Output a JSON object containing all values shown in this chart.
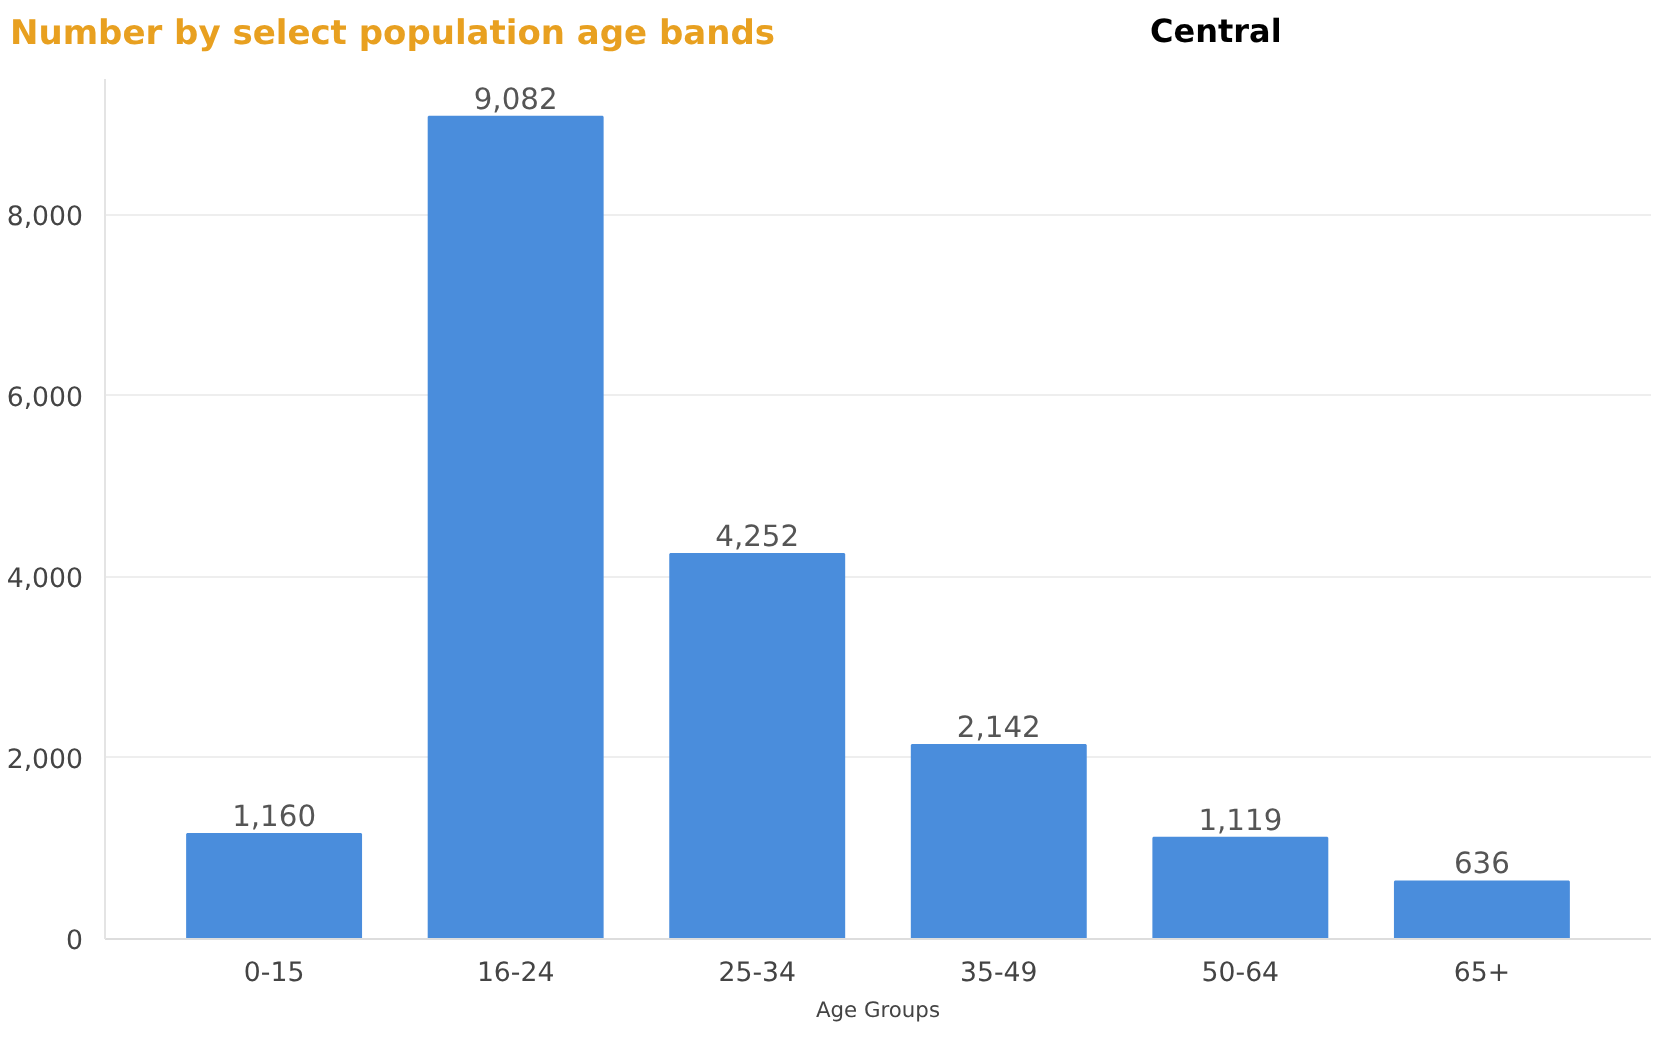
{
  "chart_data": {
    "type": "bar",
    "title": "Number by select population age bands",
    "subtitle": "Central",
    "xlabel": "Age Groups",
    "categories": [
      "0-15",
      "16-24",
      "25-34",
      "35-49",
      "50-64",
      "65+"
    ],
    "values": [
      1160,
      9082,
      4252,
      2142,
      1119,
      636
    ],
    "color": "#4a8ddc",
    "ylim": [
      0,
      9500
    ],
    "yticks": [
      0,
      {
        "value": 2000,
        "label": "2,000"
      },
      {
        "value": 4000,
        "label": "4,000"
      },
      {
        "value": 6000,
        "label": "6,000"
      },
      {
        "value": 8000,
        "label": "8,000"
      }
    ],
    "value_labels": [
      "1,160",
      "9,082",
      "4,252",
      "2,142",
      "1,119",
      "636"
    ],
    "grid": "y"
  }
}
